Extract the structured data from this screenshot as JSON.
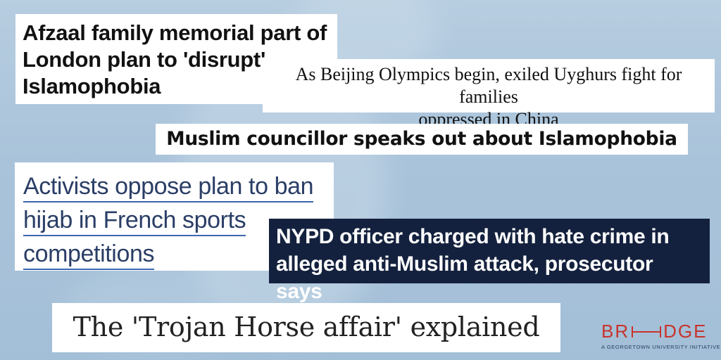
{
  "headlines": {
    "h1_lines": [
      "Afzaal family memorial part of",
      "London plan to 'disrupt'",
      "Islamophobia"
    ],
    "h2_lines": [
      "As Beijing Olympics begin, exiled Uyghurs fight for families",
      "oppressed in China"
    ],
    "h3": "Muslim councillor speaks out about Islamophobia",
    "h4_lines": [
      "Activists oppose plan to ban",
      "hijab in French sports",
      "competitions"
    ],
    "h5_lines": [
      "NYPD officer charged with hate crime in",
      "alleged anti-Muslim attack, prosecutor says"
    ],
    "h6": "The 'Trojan Horse affair' explained"
  },
  "logo": {
    "left": "BR",
    "right": "DGE",
    "tagline": "A GEORGETOWN UNIVERSITY INITIATIVE"
  },
  "colors": {
    "background": "#a9c3da",
    "navy_card": "#14213e",
    "logo_red": "#c8342b",
    "underline_blue": "#3b66b0"
  }
}
